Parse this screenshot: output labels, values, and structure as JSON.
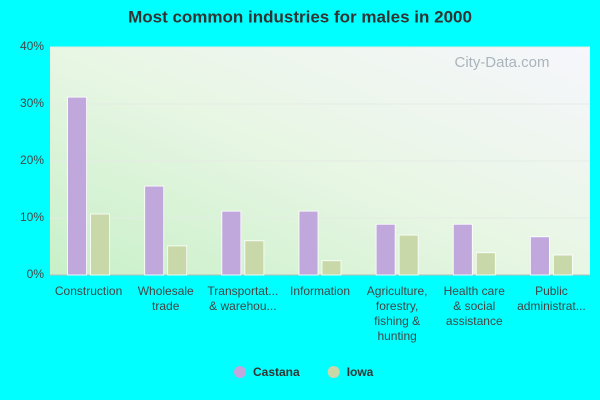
{
  "chart_data": {
    "type": "bar",
    "title": "Most common industries for males in 2000",
    "watermark": "City-Data.com",
    "categories": [
      [
        "Construction"
      ],
      [
        "Wholesale",
        "trade"
      ],
      [
        "Transportat...",
        "& warehou..."
      ],
      [
        "Information"
      ],
      [
        "Agriculture,",
        "forestry,",
        "fishing &",
        "hunting"
      ],
      [
        "Health care",
        "& social",
        "assistance"
      ],
      [
        "Public",
        "administrat..."
      ]
    ],
    "series": [
      {
        "name": "Castana",
        "color": "#c0a8dc",
        "values": [
          31.2,
          15.6,
          11.2,
          11.2,
          8.9,
          8.9,
          6.7
        ]
      },
      {
        "name": "Iowa",
        "color": "#c8d8a8",
        "values": [
          10.7,
          5.1,
          6.0,
          2.5,
          7.0,
          3.9,
          3.5
        ]
      }
    ],
    "ylim": [
      0,
      40
    ],
    "yticks": [
      {
        "value": 0,
        "label": "0%"
      },
      {
        "value": 10,
        "label": "10%"
      },
      {
        "value": 20,
        "label": "20%"
      },
      {
        "value": 30,
        "label": "30%"
      },
      {
        "value": 40,
        "label": "40%"
      }
    ],
    "grid": true
  }
}
